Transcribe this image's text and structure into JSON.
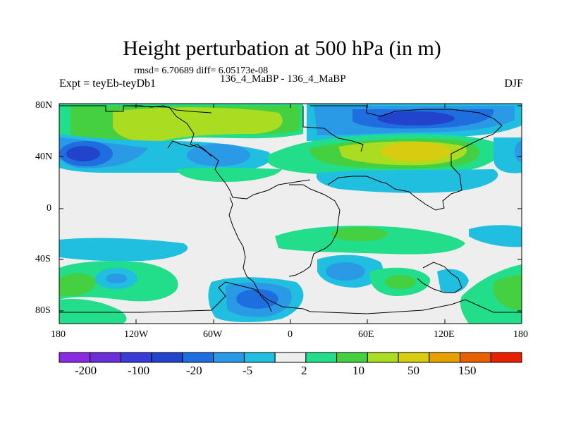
{
  "title": "Height perturbation at 500 hPa (in m)",
  "stats_line": "rmsd= 6.70689 diff= 6.05173e-08",
  "case_line": "136_4_MaBP - 136_4_MaBP",
  "expt_label": "Expt = teyEb-teyDb1",
  "season": "DJF",
  "lat_ticks": [
    "80N",
    "40N",
    "0",
    "40S",
    "80S"
  ],
  "lon_ticks": [
    "180",
    "120W",
    "60W",
    "0",
    "60E",
    "120E",
    "180"
  ],
  "colorbar": {
    "colors": [
      "#8a2be2",
      "#6a2fd8",
      "#3a3ad8",
      "#2244cc",
      "#1e6ee0",
      "#2a9ae6",
      "#20bfe0",
      "#eeeeee",
      "#22dd8a",
      "#44d040",
      "#aadd22",
      "#d8cc10",
      "#e8a000",
      "#e86000",
      "#e82000"
    ],
    "labels": [
      "-200",
      "-100",
      "-20",
      "-5",
      "2",
      "10",
      "50",
      "150"
    ]
  },
  "map_style": {
    "background": "#eeeeee",
    "coast_color": "#000000"
  }
}
